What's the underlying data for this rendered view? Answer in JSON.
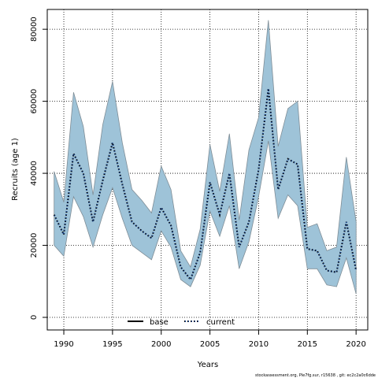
{
  "chart_data": {
    "type": "line",
    "title": "",
    "xlabel": "Years",
    "ylabel": "Recruits (age 1)",
    "xlim": [
      1988.3,
      2021.2
    ],
    "ylim": [
      -3500,
      85500
    ],
    "x_ticks": [
      1990,
      1995,
      2000,
      2005,
      2010,
      2015,
      2020
    ],
    "y_ticks": [
      0,
      20000,
      40000,
      60000,
      80000
    ],
    "grid": true,
    "legend_position": "bottom-center",
    "legend": [
      {
        "label": "base",
        "style": "solid",
        "color": "#000000"
      },
      {
        "label": "current",
        "style": "dotted",
        "color": "#000000",
        "dot_color": "#1f4e9a"
      }
    ],
    "series": [
      {
        "name": "current",
        "style": "dotted",
        "x": [
          1989,
          1990,
          1991,
          1992,
          1993,
          1994,
          1995,
          1996,
          1997,
          1998,
          1999,
          2000,
          2001,
          2002,
          2003,
          2004,
          2005,
          2006,
          2007,
          2008,
          2009,
          2010,
          2011,
          2012,
          2013,
          2014,
          2015,
          2016,
          2017,
          2018,
          2019,
          2020
        ],
        "y": [
          28500,
          23000,
          45500,
          40000,
          26500,
          38000,
          48500,
          37000,
          26500,
          24000,
          22000,
          30500,
          25500,
          14000,
          10500,
          18000,
          37500,
          28500,
          40000,
          19500,
          26500,
          41000,
          63500,
          35500,
          44000,
          42500,
          19000,
          18500,
          13000,
          12500,
          26500,
          13000
        ],
        "lower": [
          20000,
          17000,
          33500,
          28000,
          19500,
          28500,
          36000,
          27500,
          20000,
          18000,
          16000,
          24000,
          19500,
          10500,
          8500,
          14500,
          29500,
          22500,
          31000,
          13500,
          21000,
          33500,
          49000,
          27500,
          34000,
          31000,
          13500,
          13500,
          9000,
          8500,
          16500,
          6500
        ],
        "upper": [
          40500,
          32000,
          62500,
          53000,
          34000,
          53500,
          65500,
          48500,
          35500,
          32500,
          29000,
          42000,
          35500,
          18500,
          14000,
          24500,
          48000,
          35000,
          51000,
          27000,
          46500,
          55500,
          82500,
          47500,
          58000,
          60000,
          25000,
          26000,
          18500,
          19500,
          44500,
          26500
        ]
      }
    ],
    "band_color": "#9ec3d8",
    "band_edge_color": "#7f8d96",
    "footer": "stockassessment.org, Ple7fg.sur, r15638 , git: ec2c2a0c6dde"
  }
}
